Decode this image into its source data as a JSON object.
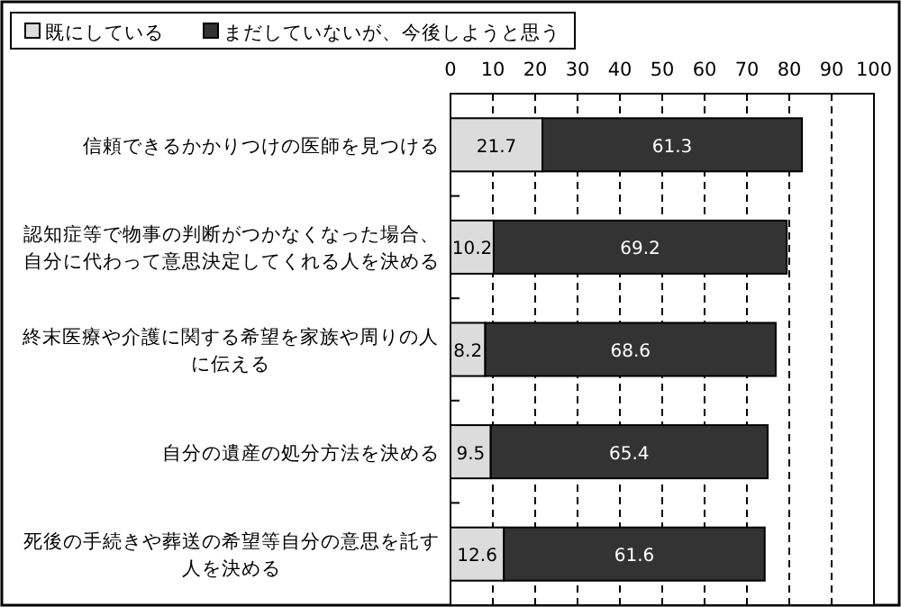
{
  "chart_data": {
    "type": "bar",
    "orientation": "horizontal",
    "stacked": true,
    "data_labels": true,
    "grid": "x",
    "legend": "top left",
    "categories": [
      "信頼できるかかりつけの医師を見つける",
      "認知症等で物事の判断がつかなくなった場合、自分に代わって意思決定してくれる人を決める",
      "終末医療や介護に関する希望を家族や周りの人に伝える",
      "自分の遺産の処分方法を決める",
      "死後の手続きや葬送の希望等自分の意思を託す人を決める"
    ],
    "series": [
      {
        "name": "既にしている",
        "color": "#dcdcdc",
        "values": [
          21.7,
          10.2,
          8.2,
          9.5,
          12.6
        ]
      },
      {
        "name": "まだしていないが、今後しようと思う",
        "color": "#333333",
        "values": [
          61.3,
          69.2,
          68.6,
          65.4,
          61.6
        ]
      }
    ],
    "xlim": [
      0,
      100
    ],
    "xticks": [
      0,
      10,
      20,
      30,
      40,
      50,
      60,
      70,
      80,
      90,
      100
    ]
  }
}
